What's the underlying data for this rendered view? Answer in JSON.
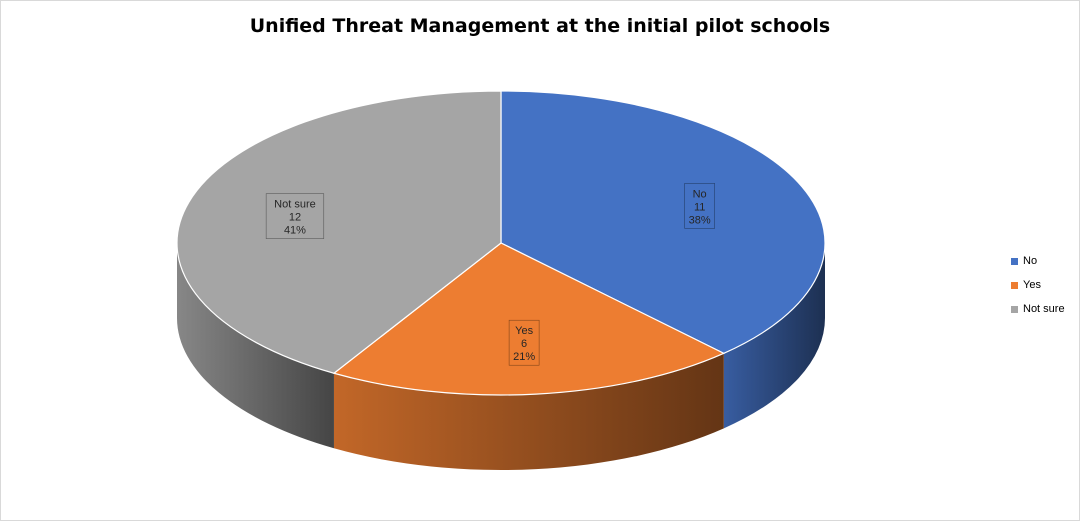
{
  "chart_data": {
    "type": "pie",
    "title": "Unified Threat Management at the initial pilot schools",
    "slices": [
      {
        "label": "No",
        "value": 11,
        "percent": "38%",
        "color": "#4472C4"
      },
      {
        "label": "Yes",
        "value": 6,
        "percent": "21%",
        "color": "#ED7D31"
      },
      {
        "label": "Not sure",
        "value": 12,
        "percent": "41%",
        "color": "#A5A5A5"
      }
    ],
    "legend_placement": "right",
    "style": "3d"
  }
}
